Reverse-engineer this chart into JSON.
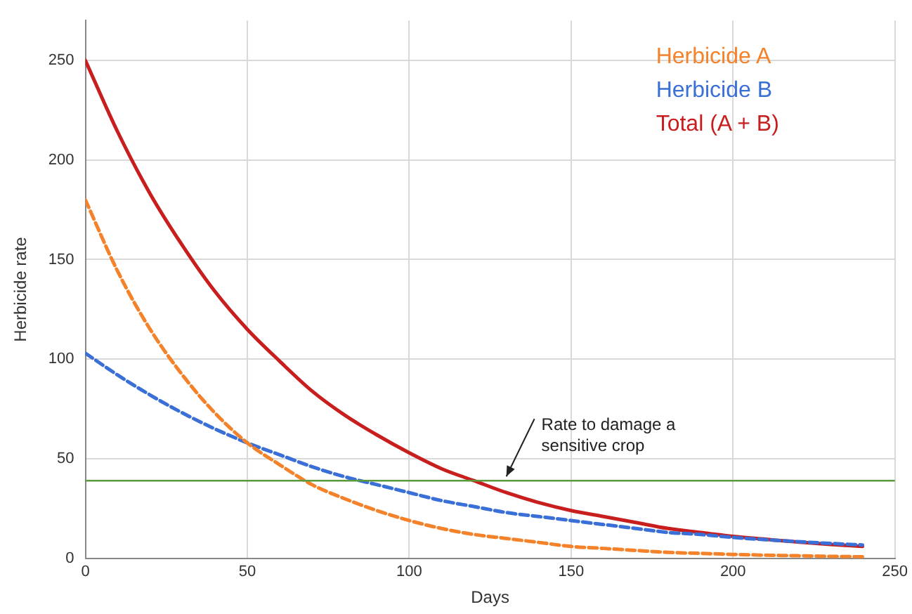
{
  "chart_data": {
    "type": "line",
    "xlabel": "Days",
    "ylabel": "Herbicide rate",
    "x": [
      0,
      10,
      20,
      30,
      40,
      50,
      60,
      70,
      80,
      90,
      100,
      110,
      120,
      130,
      140,
      150,
      160,
      170,
      180,
      190,
      200,
      210,
      220,
      230,
      240
    ],
    "series": [
      {
        "name": "Herbicide A",
        "color": "#f4822a",
        "line_style": "dashed",
        "values": [
          180,
          144,
          115,
          92,
          73,
          58,
          47,
          37,
          30,
          24,
          19,
          15,
          12,
          10,
          8,
          6,
          5,
          4,
          3,
          2.5,
          2,
          1.6,
          1.3,
          1,
          0.8
        ]
      },
      {
        "name": "Herbicide B",
        "color": "#3a6fd8",
        "line_style": "dashed",
        "values": [
          103,
          92,
          82,
          73,
          65,
          58,
          52,
          46,
          41,
          37,
          33,
          29,
          26,
          23,
          21,
          19,
          17,
          15,
          13,
          12,
          10.5,
          9.4,
          8.4,
          7.5,
          6.7
        ]
      },
      {
        "name": "Total (A + B)",
        "color": "#c81e1e",
        "line_style": "solid",
        "values": [
          250,
          214,
          183,
          157,
          134,
          115,
          99,
          84,
          72,
          62,
          53,
          45,
          39,
          33,
          28,
          24,
          21,
          18,
          15,
          13,
          11,
          9.6,
          8.2,
          7,
          6
        ]
      }
    ],
    "xlim": [
      0,
      250
    ],
    "xticks": [
      0,
      50,
      100,
      150,
      200,
      250
    ],
    "ylim": [
      0,
      270
    ],
    "yticks": [
      0,
      50,
      100,
      150,
      200,
      250
    ],
    "grid": true,
    "legend": "top right",
    "marker": "none",
    "ref_lines": [
      {
        "axis": "y",
        "value": 39,
        "color": "#5a9a3a",
        "label": "Rate to damage a sensitive crop"
      }
    ]
  }
}
